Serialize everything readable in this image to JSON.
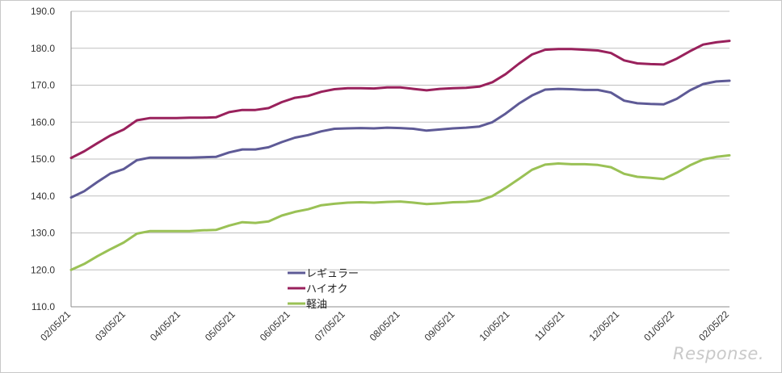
{
  "chart_data": {
    "type": "line",
    "title": "",
    "xlabel": "",
    "ylabel": "",
    "ylim": [
      110,
      190
    ],
    "yticks": [
      "110.0",
      "120.0",
      "130.0",
      "140.0",
      "150.0",
      "160.0",
      "170.0",
      "180.0",
      "190.0"
    ],
    "grid": "horizontal",
    "legend_position": "bottom-center",
    "xtick_labels": [
      "02/05/21",
      "03/05/21",
      "04/05/21",
      "05/05/21",
      "06/05/21",
      "07/05/21",
      "08/05/21",
      "09/05/21",
      "10/05/21",
      "11/05/21",
      "12/05/21",
      "01/05/22",
      "02/05/22"
    ],
    "series": [
      {
        "name": "レギュラー",
        "color": "#5e5a96",
        "values": [
          139.6,
          141.3,
          143.8,
          146.1,
          147.3,
          149.7,
          150.4,
          150.4,
          150.4,
          150.4,
          150.5,
          150.6,
          151.8,
          152.6,
          152.6,
          153.2,
          154.6,
          155.8,
          156.5,
          157.5,
          158.2,
          158.3,
          158.4,
          158.3,
          158.5,
          158.4,
          158.2,
          157.7,
          158.0,
          158.3,
          158.5,
          158.8,
          160.0,
          162.3,
          165.0,
          167.2,
          168.8,
          169.0,
          168.9,
          168.7,
          168.7,
          168.0,
          165.8,
          165.1,
          164.9,
          164.8,
          166.3,
          168.6,
          170.3,
          171.0,
          171.2
        ]
      },
      {
        "name": "ハイオク",
        "color": "#99215c",
        "values": [
          150.3,
          152.1,
          154.3,
          156.4,
          158.0,
          160.5,
          161.1,
          161.1,
          161.1,
          161.2,
          161.2,
          161.3,
          162.7,
          163.3,
          163.3,
          163.8,
          165.4,
          166.6,
          167.1,
          168.2,
          168.9,
          169.2,
          169.2,
          169.1,
          169.4,
          169.4,
          169.0,
          168.6,
          169.0,
          169.2,
          169.3,
          169.6,
          170.8,
          173.0,
          175.8,
          178.3,
          179.6,
          179.8,
          179.8,
          179.6,
          179.4,
          178.7,
          176.7,
          175.9,
          175.7,
          175.6,
          177.2,
          179.2,
          181.0,
          181.6,
          182.0
        ]
      },
      {
        "name": "軽油",
        "color": "#9ac155",
        "values": [
          120.0,
          121.6,
          123.7,
          125.6,
          127.4,
          129.8,
          130.5,
          130.5,
          130.5,
          130.5,
          130.7,
          130.8,
          132.0,
          132.9,
          132.7,
          133.1,
          134.7,
          135.7,
          136.4,
          137.5,
          137.9,
          138.2,
          138.3,
          138.2,
          138.4,
          138.5,
          138.2,
          137.8,
          138.0,
          138.3,
          138.4,
          138.7,
          140.0,
          142.2,
          144.6,
          147.1,
          148.5,
          148.8,
          148.6,
          148.6,
          148.4,
          147.8,
          146.0,
          145.2,
          144.9,
          144.6,
          146.3,
          148.3,
          149.9,
          150.6,
          151.0
        ]
      }
    ],
    "watermark": "Response."
  }
}
